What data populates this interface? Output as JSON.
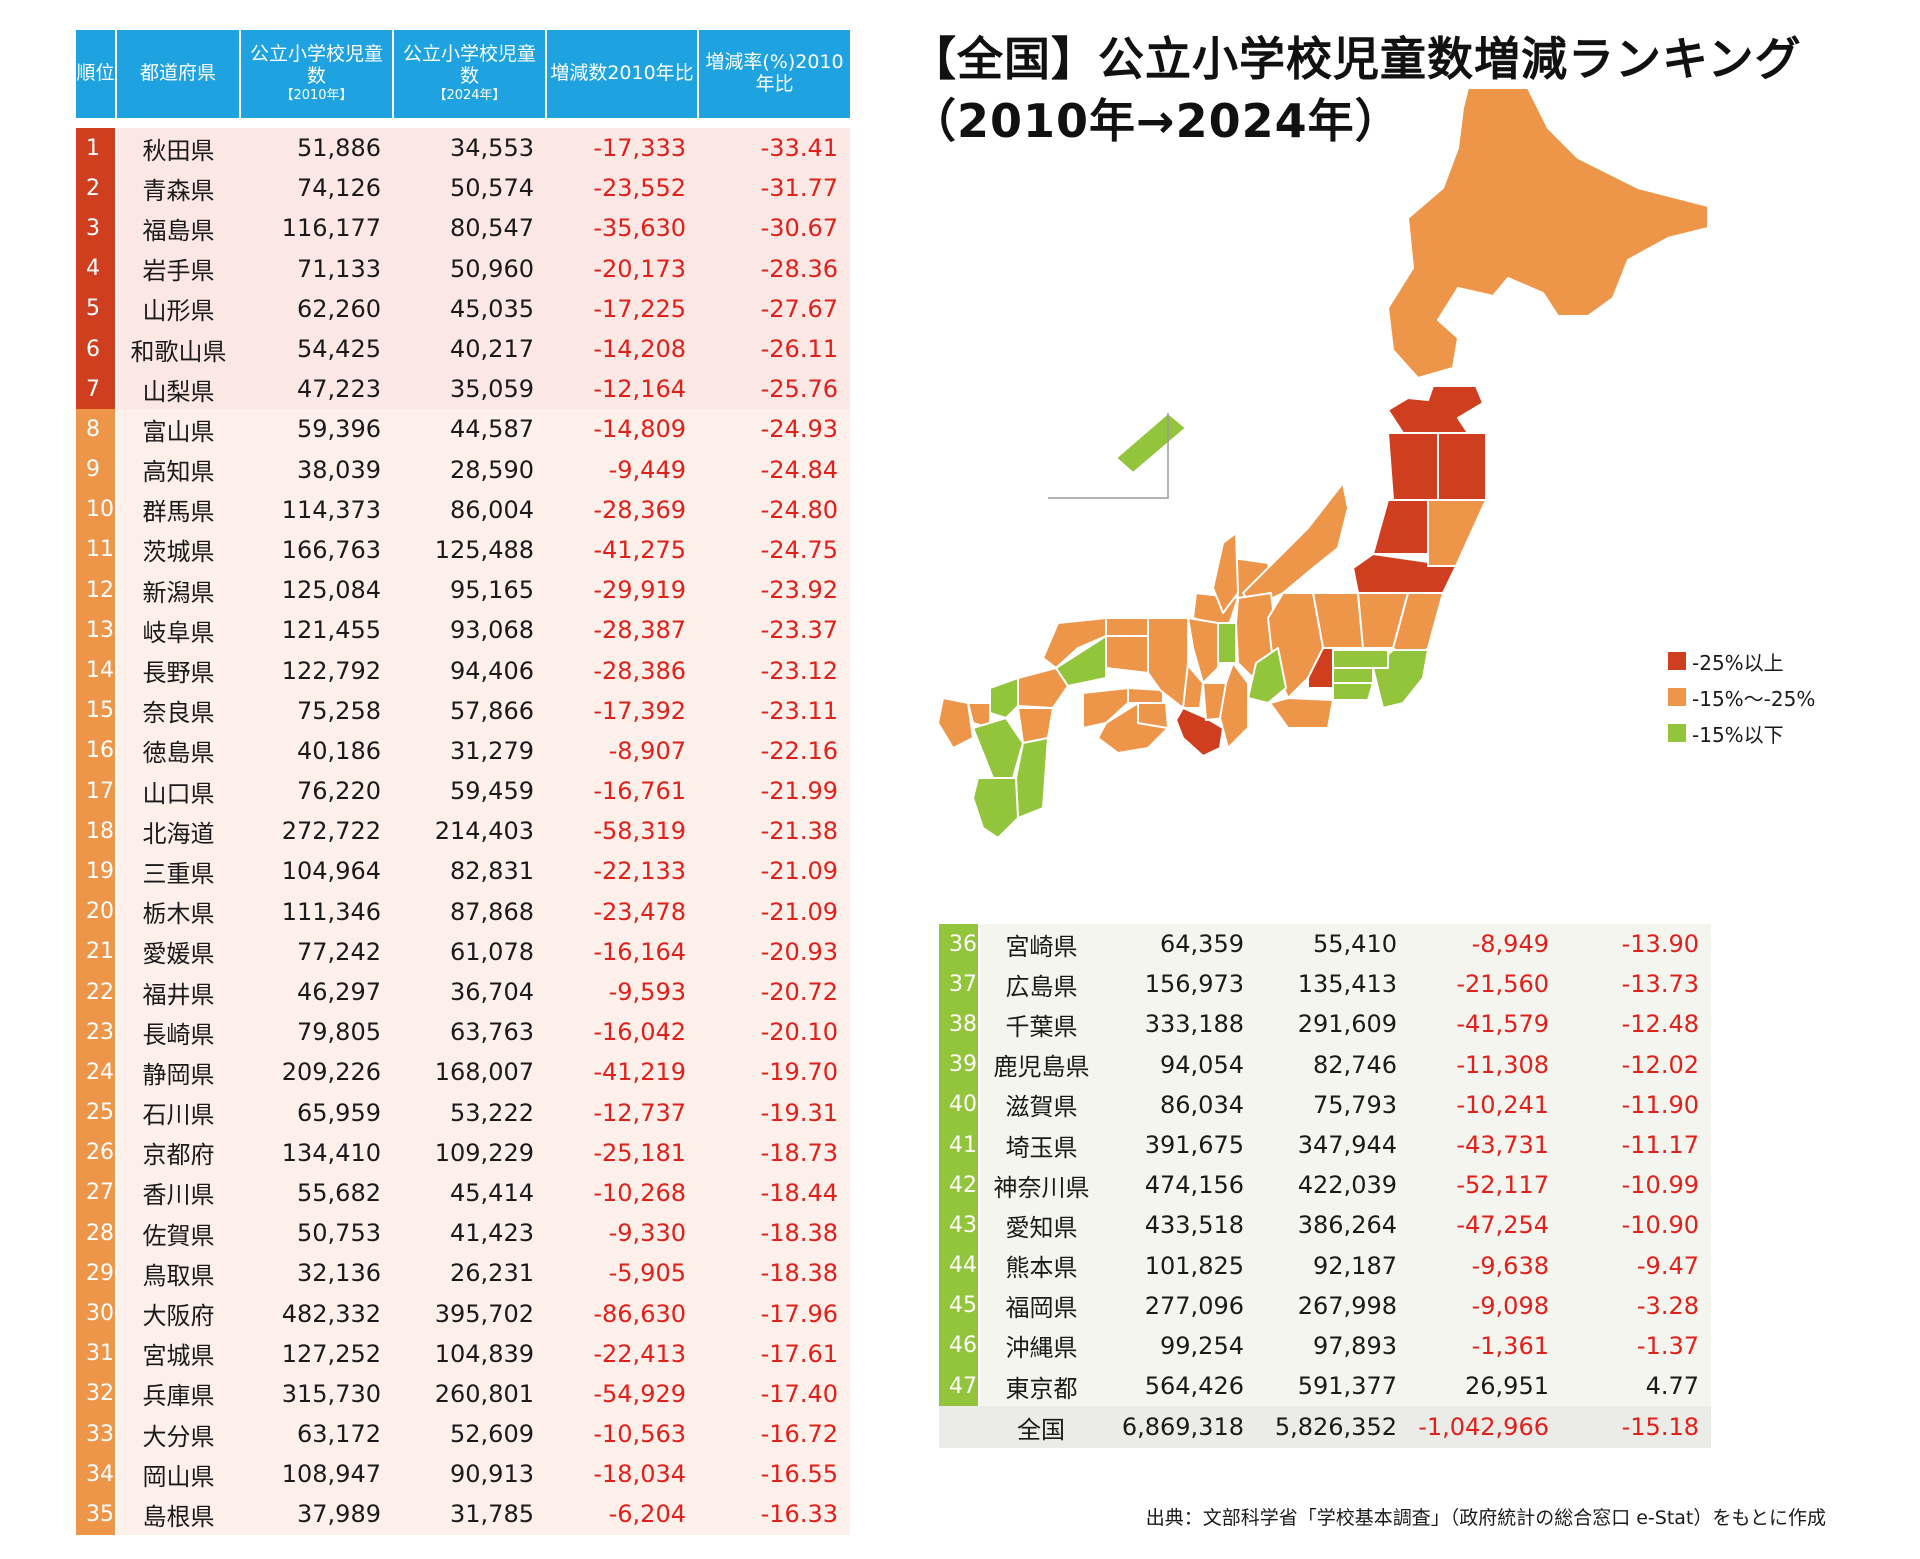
{
  "title_line1": "【全国】公立小学校児童数増減ランキング",
  "title_line2": "（2010年→2024年）",
  "table_headers": {
    "rank": "順位",
    "pref": "都道府県",
    "c2010_main": "公立小学校児童数",
    "c2010_sub": "【2010年】",
    "c2024_main": "公立小学校児童数",
    "c2024_sub": "【2024年】",
    "diff": "増減数2010年比",
    "rate": "増減率(%)2010年比"
  },
  "legend": [
    {
      "label": "-25%以上",
      "color": "#cf3e1f"
    },
    {
      "label": "-15%〜-25%",
      "color": "#ed964a"
    },
    {
      "label": "-15%以下",
      "color": "#92c43c"
    }
  ],
  "tier_colors": {
    "red": "#cf3e1f",
    "orange": "#ed964a",
    "green": "#92c43c"
  },
  "source": "出典：文部科学省「学校基本調査」（政府統計の総合窓口 e-Stat）をもとに作成",
  "total": {
    "label": "全国",
    "y2010": "6,869,318",
    "y2024": "5,826,352",
    "diff": "-1,042,966",
    "rate": "-15.18"
  },
  "chart_data": {
    "type": "table",
    "columns": [
      "順位",
      "都道府県",
      "公立小学校児童数【2010年】",
      "公立小学校児童数【2024年】",
      "増減数 2010年比",
      "増減率(%) 2010年比"
    ],
    "rows": [
      {
        "rank": "1",
        "pref": "秋田県",
        "y2010": "51,886",
        "y2024": "34,553",
        "diff": "-17,333",
        "rate": "-33.41",
        "tier": "red"
      },
      {
        "rank": "2",
        "pref": "青森県",
        "y2010": "74,126",
        "y2024": "50,574",
        "diff": "-23,552",
        "rate": "-31.77",
        "tier": "red"
      },
      {
        "rank": "3",
        "pref": "福島県",
        "y2010": "116,177",
        "y2024": "80,547",
        "diff": "-35,630",
        "rate": "-30.67",
        "tier": "red"
      },
      {
        "rank": "4",
        "pref": "岩手県",
        "y2010": "71,133",
        "y2024": "50,960",
        "diff": "-20,173",
        "rate": "-28.36",
        "tier": "red"
      },
      {
        "rank": "5",
        "pref": "山形県",
        "y2010": "62,260",
        "y2024": "45,035",
        "diff": "-17,225",
        "rate": "-27.67",
        "tier": "red"
      },
      {
        "rank": "6",
        "pref": "和歌山県",
        "y2010": "54,425",
        "y2024": "40,217",
        "diff": "-14,208",
        "rate": "-26.11",
        "tier": "red"
      },
      {
        "rank": "7",
        "pref": "山梨県",
        "y2010": "47,223",
        "y2024": "35,059",
        "diff": "-12,164",
        "rate": "-25.76",
        "tier": "red"
      },
      {
        "rank": "8",
        "pref": "富山県",
        "y2010": "59,396",
        "y2024": "44,587",
        "diff": "-14,809",
        "rate": "-24.93",
        "tier": "orange"
      },
      {
        "rank": "9",
        "pref": "高知県",
        "y2010": "38,039",
        "y2024": "28,590",
        "diff": "-9,449",
        "rate": "-24.84",
        "tier": "orange"
      },
      {
        "rank": "10",
        "pref": "群馬県",
        "y2010": "114,373",
        "y2024": "86,004",
        "diff": "-28,369",
        "rate": "-24.80",
        "tier": "orange"
      },
      {
        "rank": "11",
        "pref": "茨城県",
        "y2010": "166,763",
        "y2024": "125,488",
        "diff": "-41,275",
        "rate": "-24.75",
        "tier": "orange"
      },
      {
        "rank": "12",
        "pref": "新潟県",
        "y2010": "125,084",
        "y2024": "95,165",
        "diff": "-29,919",
        "rate": "-23.92",
        "tier": "orange"
      },
      {
        "rank": "13",
        "pref": "岐阜県",
        "y2010": "121,455",
        "y2024": "93,068",
        "diff": "-28,387",
        "rate": "-23.37",
        "tier": "orange"
      },
      {
        "rank": "14",
        "pref": "長野県",
        "y2010": "122,792",
        "y2024": "94,406",
        "diff": "-28,386",
        "rate": "-23.12",
        "tier": "orange"
      },
      {
        "rank": "15",
        "pref": "奈良県",
        "y2010": "75,258",
        "y2024": "57,866",
        "diff": "-17,392",
        "rate": "-23.11",
        "tier": "orange"
      },
      {
        "rank": "16",
        "pref": "徳島県",
        "y2010": "40,186",
        "y2024": "31,279",
        "diff": "-8,907",
        "rate": "-22.16",
        "tier": "orange"
      },
      {
        "rank": "17",
        "pref": "山口県",
        "y2010": "76,220",
        "y2024": "59,459",
        "diff": "-16,761",
        "rate": "-21.99",
        "tier": "orange"
      },
      {
        "rank": "18",
        "pref": "北海道",
        "y2010": "272,722",
        "y2024": "214,403",
        "diff": "-58,319",
        "rate": "-21.38",
        "tier": "orange"
      },
      {
        "rank": "19",
        "pref": "三重県",
        "y2010": "104,964",
        "y2024": "82,831",
        "diff": "-22,133",
        "rate": "-21.09",
        "tier": "orange"
      },
      {
        "rank": "20",
        "pref": "栃木県",
        "y2010": "111,346",
        "y2024": "87,868",
        "diff": "-23,478",
        "rate": "-21.09",
        "tier": "orange"
      },
      {
        "rank": "21",
        "pref": "愛媛県",
        "y2010": "77,242",
        "y2024": "61,078",
        "diff": "-16,164",
        "rate": "-20.93",
        "tier": "orange"
      },
      {
        "rank": "22",
        "pref": "福井県",
        "y2010": "46,297",
        "y2024": "36,704",
        "diff": "-9,593",
        "rate": "-20.72",
        "tier": "orange"
      },
      {
        "rank": "23",
        "pref": "長崎県",
        "y2010": "79,805",
        "y2024": "63,763",
        "diff": "-16,042",
        "rate": "-20.10",
        "tier": "orange"
      },
      {
        "rank": "24",
        "pref": "静岡県",
        "y2010": "209,226",
        "y2024": "168,007",
        "diff": "-41,219",
        "rate": "-19.70",
        "tier": "orange"
      },
      {
        "rank": "25",
        "pref": "石川県",
        "y2010": "65,959",
        "y2024": "53,222",
        "diff": "-12,737",
        "rate": "-19.31",
        "tier": "orange"
      },
      {
        "rank": "26",
        "pref": "京都府",
        "y2010": "134,410",
        "y2024": "109,229",
        "diff": "-25,181",
        "rate": "-18.73",
        "tier": "orange"
      },
      {
        "rank": "27",
        "pref": "香川県",
        "y2010": "55,682",
        "y2024": "45,414",
        "diff": "-10,268",
        "rate": "-18.44",
        "tier": "orange"
      },
      {
        "rank": "28",
        "pref": "佐賀県",
        "y2010": "50,753",
        "y2024": "41,423",
        "diff": "-9,330",
        "rate": "-18.38",
        "tier": "orange"
      },
      {
        "rank": "29",
        "pref": "鳥取県",
        "y2010": "32,136",
        "y2024": "26,231",
        "diff": "-5,905",
        "rate": "-18.38",
        "tier": "orange"
      },
      {
        "rank": "30",
        "pref": "大阪府",
        "y2010": "482,332",
        "y2024": "395,702",
        "diff": "-86,630",
        "rate": "-17.96",
        "tier": "orange"
      },
      {
        "rank": "31",
        "pref": "宮城県",
        "y2010": "127,252",
        "y2024": "104,839",
        "diff": "-22,413",
        "rate": "-17.61",
        "tier": "orange"
      },
      {
        "rank": "32",
        "pref": "兵庫県",
        "y2010": "315,730",
        "y2024": "260,801",
        "diff": "-54,929",
        "rate": "-17.40",
        "tier": "orange"
      },
      {
        "rank": "33",
        "pref": "大分県",
        "y2010": "63,172",
        "y2024": "52,609",
        "diff": "-10,563",
        "rate": "-16.72",
        "tier": "orange"
      },
      {
        "rank": "34",
        "pref": "岡山県",
        "y2010": "108,947",
        "y2024": "90,913",
        "diff": "-18,034",
        "rate": "-16.55",
        "tier": "orange"
      },
      {
        "rank": "35",
        "pref": "島根県",
        "y2010": "37,989",
        "y2024": "31,785",
        "diff": "-6,204",
        "rate": "-16.33",
        "tier": "orange"
      },
      {
        "rank": "36",
        "pref": "宮崎県",
        "y2010": "64,359",
        "y2024": "55,410",
        "diff": "-8,949",
        "rate": "-13.90",
        "tier": "green"
      },
      {
        "rank": "37",
        "pref": "広島県",
        "y2010": "156,973",
        "y2024": "135,413",
        "diff": "-21,560",
        "rate": "-13.73",
        "tier": "green"
      },
      {
        "rank": "38",
        "pref": "千葉県",
        "y2010": "333,188",
        "y2024": "291,609",
        "diff": "-41,579",
        "rate": "-12.48",
        "tier": "green"
      },
      {
        "rank": "39",
        "pref": "鹿児島県",
        "y2010": "94,054",
        "y2024": "82,746",
        "diff": "-11,308",
        "rate": "-12.02",
        "tier": "green"
      },
      {
        "rank": "40",
        "pref": "滋賀県",
        "y2010": "86,034",
        "y2024": "75,793",
        "diff": "-10,241",
        "rate": "-11.90",
        "tier": "green"
      },
      {
        "rank": "41",
        "pref": "埼玉県",
        "y2010": "391,675",
        "y2024": "347,944",
        "diff": "-43,731",
        "rate": "-11.17",
        "tier": "green"
      },
      {
        "rank": "42",
        "pref": "神奈川県",
        "y2010": "474,156",
        "y2024": "422,039",
        "diff": "-52,117",
        "rate": "-10.99",
        "tier": "green"
      },
      {
        "rank": "43",
        "pref": "愛知県",
        "y2010": "433,518",
        "y2024": "386,264",
        "diff": "-47,254",
        "rate": "-10.90",
        "tier": "green"
      },
      {
        "rank": "44",
        "pref": "熊本県",
        "y2010": "101,825",
        "y2024": "92,187",
        "diff": "-9,638",
        "rate": "-9.47",
        "tier": "green"
      },
      {
        "rank": "45",
        "pref": "福岡県",
        "y2010": "277,096",
        "y2024": "267,998",
        "diff": "-9,098",
        "rate": "-3.28",
        "tier": "green"
      },
      {
        "rank": "46",
        "pref": "沖縄県",
        "y2010": "99,254",
        "y2024": "97,893",
        "diff": "-1,361",
        "rate": "-1.37",
        "tier": "green"
      },
      {
        "rank": "47",
        "pref": "東京都",
        "y2010": "564,426",
        "y2024": "591,377",
        "diff": "26,951",
        "rate": "4.77",
        "tier": "green"
      }
    ]
  }
}
